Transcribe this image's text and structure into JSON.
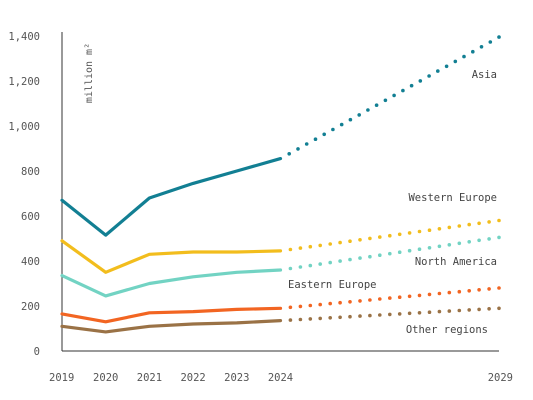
{
  "chart_data": {
    "type": "line",
    "ylabel": "million m²",
    "ylim": [
      0,
      1400
    ],
    "yticks": [
      "0",
      "200",
      "400",
      "600",
      "800",
      "1,000",
      "1,200",
      "1,400"
    ],
    "xticks": [
      "2019",
      "2020",
      "2021",
      "2022",
      "2023",
      "2024",
      "2029"
    ],
    "grid": false,
    "actual_years": [
      2019,
      2020,
      2021,
      2022,
      2023,
      2024
    ],
    "projection_years": [
      2024,
      2029
    ],
    "series": [
      {
        "name": "Asia",
        "color": "#127f93",
        "actual": [
          670,
          515,
          680,
          745,
          800,
          855
        ],
        "projection": [
          855,
          1395
        ]
      },
      {
        "name": "Western Europe",
        "color": "#f2bd1d",
        "actual": [
          490,
          350,
          430,
          440,
          440,
          445
        ],
        "projection": [
          445,
          580
        ]
      },
      {
        "name": "North America",
        "color": "#72d3c3",
        "actual": [
          335,
          245,
          300,
          330,
          350,
          360
        ],
        "projection": [
          360,
          505
        ]
      },
      {
        "name": "Eastern Europe",
        "color": "#f26522",
        "actual": [
          165,
          130,
          170,
          175,
          185,
          190
        ],
        "projection": [
          190,
          280
        ]
      },
      {
        "name": "Other regions",
        "color": "#9a7246",
        "actual": [
          110,
          85,
          110,
          120,
          125,
          135
        ],
        "projection": [
          135,
          190
        ]
      }
    ]
  }
}
